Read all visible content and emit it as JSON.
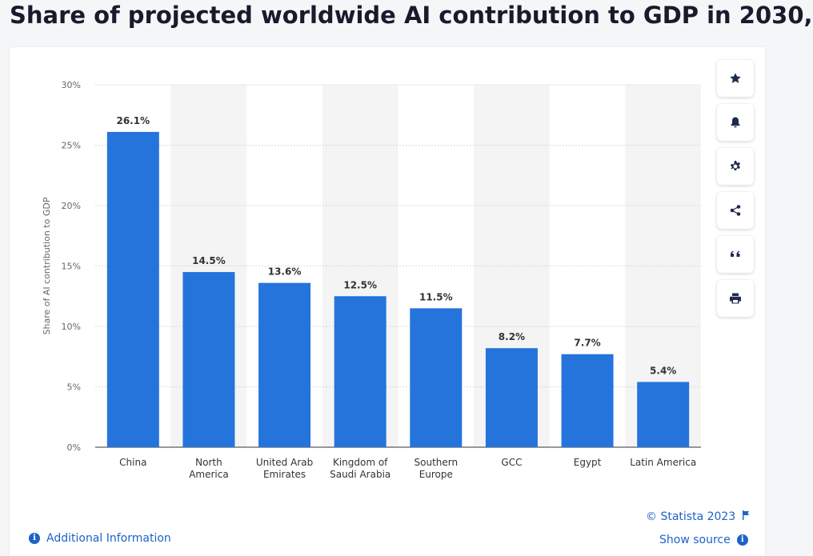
{
  "page": {
    "title": "Share of projected worldwide AI contribution to GDP in 2030,"
  },
  "toolbar": {
    "buttons": [
      "star-icon",
      "bell-icon",
      "gear-icon",
      "share-icon",
      "quote-icon",
      "print-icon"
    ]
  },
  "footer": {
    "additional_info": "Additional Information",
    "copyright": "© Statista 2023",
    "show_source": "Show source"
  },
  "colors": {
    "bar": "#2574dc",
    "stripe": "#f4f4f5",
    "accent": "#1e62c8"
  },
  "chart_data": {
    "type": "bar",
    "categories": [
      [
        "China"
      ],
      [
        "North",
        "America"
      ],
      [
        "United Arab",
        "Emirates"
      ],
      [
        "Kingdom of",
        "Saudi Arabia"
      ],
      [
        "Southern",
        "Europe"
      ],
      [
        "GCC"
      ],
      [
        "Egypt"
      ],
      [
        "Latin America"
      ]
    ],
    "values": [
      26.1,
      14.5,
      13.6,
      12.5,
      11.5,
      8.2,
      7.7,
      5.4
    ],
    "value_labels": [
      "26.1%",
      "14.5%",
      "13.6%",
      "12.5%",
      "11.5%",
      "8.2%",
      "7.7%",
      "5.4%"
    ],
    "ylabel": "Share of AI contribution to GDP",
    "yticks": [
      0,
      5,
      10,
      15,
      20,
      25,
      30
    ],
    "ytick_labels": [
      "0%",
      "5%",
      "10%",
      "15%",
      "20%",
      "25%",
      "30%"
    ],
    "ylim": [
      0,
      30
    ],
    "grid": true
  }
}
